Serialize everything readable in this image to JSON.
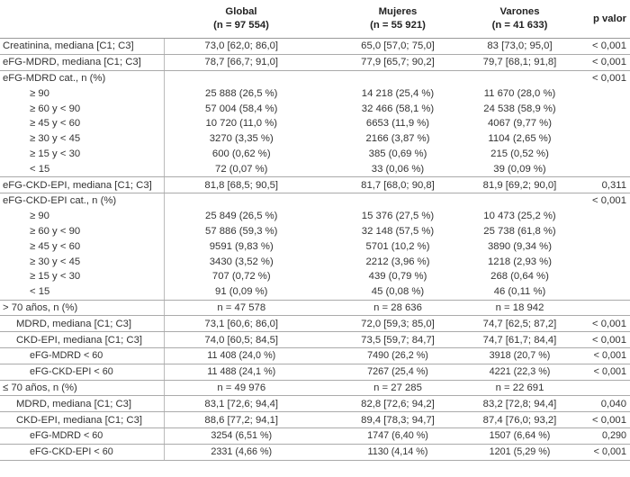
{
  "header": {
    "columns": [
      {
        "name": "Global",
        "n": "(n = 97 554)"
      },
      {
        "name": "Mujeres",
        "n": "(n = 55 921)"
      },
      {
        "name": "Varones",
        "n": "(n = 41 633)"
      },
      {
        "name": "p valor"
      }
    ]
  },
  "rows": [
    {
      "label": "Creatinina, mediana [C1; C3]",
      "global": "73,0 [62,0; 86,0]",
      "mujeres": "65,0 [57,0; 75,0]",
      "varones": "83 [73,0; 95,0]",
      "p": "< 0,001"
    },
    {
      "label": "eFG-MDRD, mediana [C1; C3]",
      "global": "78,7 [66,7; 91,0]",
      "mujeres": "77,9 [65,7; 90,2]",
      "varones": "79,7 [68,1; 91,8]",
      "p": "< 0,001"
    },
    {
      "label": "eFG-MDRD cat., n (%)",
      "p": "< 0,001"
    },
    {
      "label": "≥ 90",
      "global": "25 888 (26,5 %)",
      "mujeres": "14 218 (25,4 %)",
      "varones": "11 670 (28,0 %)"
    },
    {
      "label": "≥ 60 y < 90",
      "global": "57 004 (58,4 %)",
      "mujeres": "32 466 (58,1 %)",
      "varones": "24 538 (58,9 %)"
    },
    {
      "label": "≥ 45 y < 60",
      "global": "10 720 (11,0 %)",
      "mujeres": "6653 (11,9 %)",
      "varones": "4067 (9,77 %)"
    },
    {
      "label": "≥ 30 y < 45",
      "global": "3270 (3,35 %)",
      "mujeres": "2166 (3,87 %)",
      "varones": "1104 (2,65 %)"
    },
    {
      "label": "≥ 15 y < 30",
      "global": "600 (0,62 %)",
      "mujeres": "385 (0,69 %)",
      "varones": "215 (0,52 %)"
    },
    {
      "label": "< 15",
      "global": "72 (0,07 %)",
      "mujeres": "33 (0,06 %)",
      "varones": "39 (0,09 %)"
    },
    {
      "label": "eFG-CKD-EPI, mediana [C1; C3]",
      "global": "81,8 [68,5; 90,5]",
      "mujeres": "81,7 [68,0; 90,8]",
      "varones": "81,9 [69,2; 90,0]",
      "p": "0,311"
    },
    {
      "label": "eFG-CKD-EPI cat., n (%)",
      "p": "< 0,001"
    },
    {
      "label": "≥ 90",
      "global": "25 849 (26,5 %)",
      "mujeres": "15 376 (27,5 %)",
      "varones": "10 473 (25,2 %)"
    },
    {
      "label": "≥ 60 y < 90",
      "global": "57 886 (59,3 %)",
      "mujeres": "32 148 (57,5 %)",
      "varones": "25 738 (61,8 %)"
    },
    {
      "label": "≥ 45 y < 60",
      "global": "9591 (9,83 %)",
      "mujeres": "5701 (10,2 %)",
      "varones": "3890 (9,34 %)"
    },
    {
      "label": "≥ 30 y < 45",
      "global": "3430 (3,52 %)",
      "mujeres": "2212 (3,96 %)",
      "varones": "1218 (2,93 %)"
    },
    {
      "label": "≥ 15 y < 30",
      "global": "707 (0,72 %)",
      "mujeres": "439 (0,79 %)",
      "varones": "268 (0,64 %)"
    },
    {
      "label": "< 15",
      "global": "91 (0,09 %)",
      "mujeres": "45 (0,08 %)",
      "varones": "46 (0,11 %)"
    },
    {
      "label": "> 70 años, n (%)",
      "global": "n = 47 578",
      "mujeres": "n = 28 636",
      "varones": "n = 18 942"
    },
    {
      "label": "MDRD, mediana [C1; C3]",
      "global": "73,1 [60,6; 86,0]",
      "mujeres": "72,0 [59,3; 85,0]",
      "varones": "74,7 [62,5; 87,2]",
      "p": "< 0,001"
    },
    {
      "label": "CKD-EPI, mediana [C1; C3]",
      "global": "74,0 [60,5; 84,5]",
      "mujeres": "73,5 [59,7; 84,7]",
      "varones": "74,7 [61,7; 84,4]",
      "p": "< 0,001"
    },
    {
      "label": "eFG-MDRD < 60",
      "global": "11 408 (24,0 %)",
      "mujeres": "7490 (26,2 %)",
      "varones": "3918 (20,7 %)",
      "p": "< 0,001"
    },
    {
      "label": "eFG-CKD-EPI < 60",
      "global": "11 488 (24,1 %)",
      "mujeres": "7267 (25,4 %)",
      "varones": "4221 (22,3 %)",
      "p": "< 0,001"
    },
    {
      "label": "≤ 70 años, n (%)",
      "global": "n = 49 976",
      "mujeres": "n = 27 285",
      "varones": "n = 22 691"
    },
    {
      "label": "MDRD, mediana [C1; C3]",
      "global": "83,1 [72,6; 94,4]",
      "mujeres": "82,8 [72,6; 94,2]",
      "varones": "83,2 [72,8; 94,4]",
      "p": "0,040"
    },
    {
      "label": "CKD-EPI, mediana [C1; C3]",
      "global": "88,6 [77,2; 94,1]",
      "mujeres": "89,4 [78,3; 94,7]",
      "varones": "87,4 [76,0; 93,2]",
      "p": "< 0,001"
    },
    {
      "label": "eFG-MDRD < 60",
      "global": "3254 (6,51 %)",
      "mujeres": "1747 (6,40 %)",
      "varones": "1507 (6,64 %)",
      "p": "0,290"
    },
    {
      "label": "eFG-CKD-EPI < 60",
      "global": "2331 (4,66 %)",
      "mujeres": "1130 (4,14 %)",
      "varones": "1201 (5,29 %)",
      "p": "< 0,001"
    }
  ]
}
